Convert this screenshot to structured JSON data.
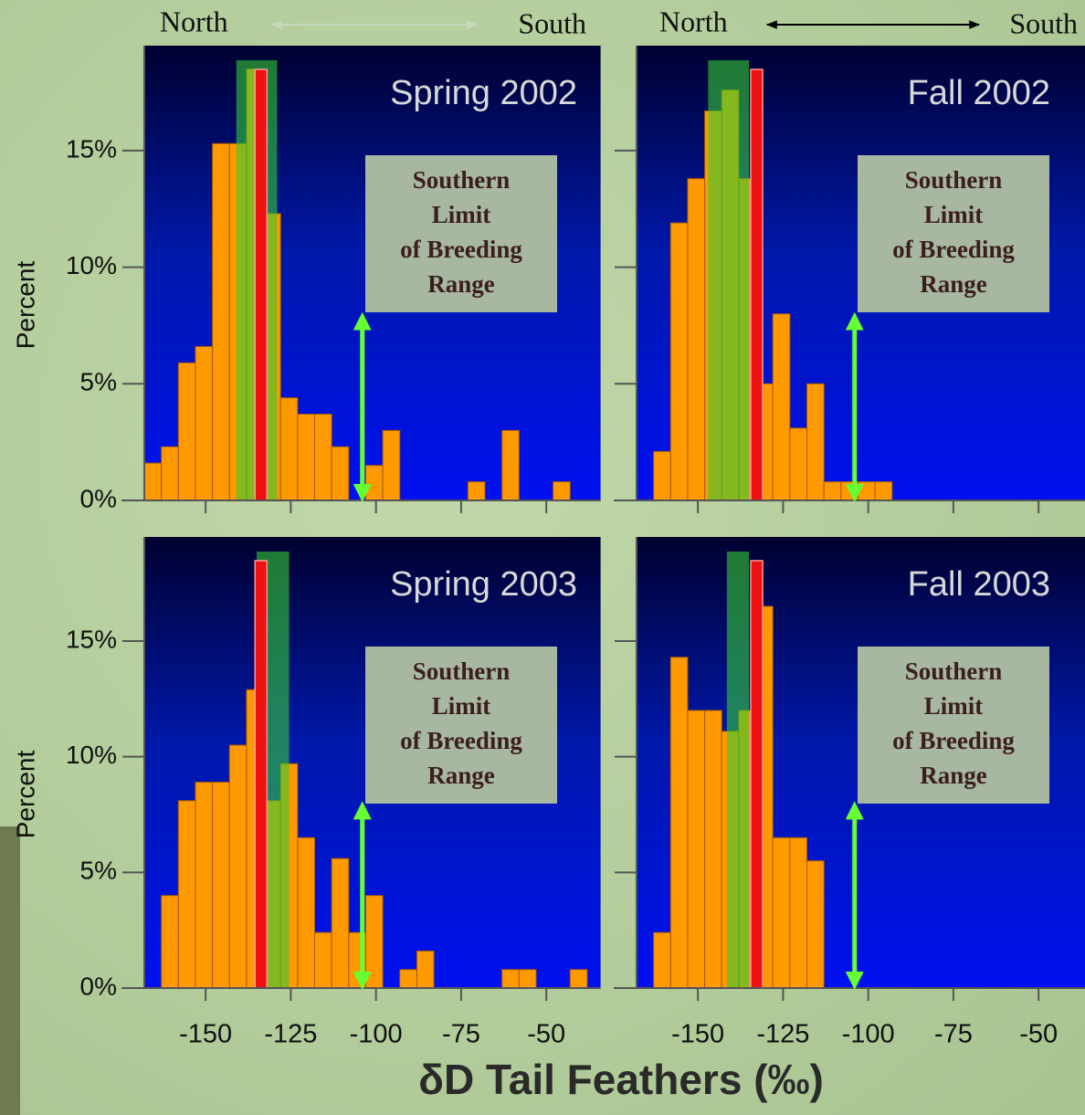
{
  "chart_data": [
    {
      "type": "histogram",
      "title": "Spring 2002",
      "direction_labels": [
        "North",
        "South"
      ],
      "direction_color": "#c8d8c0",
      "ylabel": "Percent",
      "bins": [
        -168,
        -163,
        -158,
        -153,
        -148,
        -143,
        -138,
        -133,
        -128,
        -123,
        -118,
        -113,
        -108,
        -103,
        -98,
        -93,
        -88,
        -83,
        -78,
        -73,
        -68,
        -63,
        -58,
        -53,
        -48,
        -43,
        -38,
        -33
      ],
      "values": [
        1.6,
        2.3,
        5.9,
        6.6,
        15.3,
        15.3,
        18.5,
        12.3,
        4.4,
        3.7,
        3.7,
        2.3,
        0,
        1.5,
        3.0,
        0,
        0,
        0,
        0,
        0.8,
        0,
        3.0,
        0,
        0,
        0.8,
        0,
        0
      ],
      "color": "#ff9900",
      "green_band": [
        -141,
        -129
      ],
      "red_band": [
        -135.5,
        -132
      ],
      "limit_arrow": {
        "x": -104,
        "top": 8
      },
      "annotation": [
        "Southern",
        "Limit",
        "of Breeding",
        "Range"
      ],
      "xlim": [
        -168,
        -33
      ],
      "ylim": [
        0,
        19.5
      ],
      "xticks": [
        -150,
        -125,
        -100,
        -75,
        -50
      ],
      "show_xtick_labels": false,
      "yticks": [
        {
          "value": 0,
          "label": "0%"
        },
        {
          "value": 5,
          "label": "5%"
        },
        {
          "value": 10,
          "label": "10%"
        },
        {
          "value": 15,
          "label": "15%"
        }
      ]
    },
    {
      "type": "histogram",
      "title": "Fall 2002",
      "direction_labels": [
        "North",
        "South"
      ],
      "direction_color": "#000000",
      "bins": [
        -168,
        -163,
        -158,
        -153,
        -148,
        -143,
        -138,
        -133,
        -128,
        -123,
        -118,
        -113,
        -108,
        -103,
        -98,
        -93,
        -88,
        -83,
        -78,
        -73,
        -68,
        -63,
        -58,
        -53,
        -48,
        -43,
        -38,
        -33
      ],
      "values": [
        0,
        2.1,
        11.9,
        13.8,
        16.7,
        17.6,
        13.8,
        5.0,
        8.0,
        3.1,
        5.0,
        0.8,
        0.8,
        0.8,
        0.8,
        0,
        0,
        0,
        0,
        0,
        0,
        0,
        0,
        0,
        0,
        0,
        0
      ],
      "color": "#ff9900",
      "green_band": [
        -147,
        -135
      ],
      "red_band": [
        -134.5,
        -131
      ],
      "limit_arrow": {
        "x": -104,
        "top": 8
      },
      "annotation": [
        "Southern",
        "Limit",
        "of Breeding",
        "Range"
      ],
      "xlim": [
        -168,
        -33
      ],
      "ylim": [
        0,
        19.5
      ],
      "xticks": [
        -150,
        -125,
        -100,
        -75,
        -50
      ],
      "show_xtick_labels": false,
      "yticks": [
        0,
        5,
        10,
        15
      ]
    },
    {
      "type": "histogram",
      "title": "Spring 2003",
      "ylabel": "Percent",
      "bins": [
        -168,
        -163,
        -158,
        -153,
        -148,
        -143,
        -138,
        -133,
        -128,
        -123,
        -118,
        -113,
        -108,
        -103,
        -98,
        -93,
        -88,
        -83,
        -78,
        -73,
        -68,
        -63,
        -58,
        -53,
        -48,
        -43,
        -38,
        -33
      ],
      "values": [
        0,
        4.0,
        8.1,
        8.9,
        8.9,
        10.5,
        12.9,
        8.1,
        9.7,
        6.5,
        2.4,
        5.6,
        2.4,
        4.0,
        0,
        0.8,
        1.6,
        0,
        0,
        0,
        0,
        0.8,
        0.8,
        0,
        0,
        0.8,
        0
      ],
      "color": "#ff9900",
      "green_band": [
        -135,
        -125.5
      ],
      "red_band": [
        -135.5,
        -132
      ],
      "limit_arrow": {
        "x": -104,
        "top": 8
      },
      "annotation": [
        "Southern",
        "Limit",
        "of Breeding",
        "Range"
      ],
      "xlim": [
        -168,
        -33
      ],
      "ylim": [
        0,
        19.5
      ],
      "xticks": [
        -150,
        -125,
        -100,
        -75,
        -50
      ],
      "show_xtick_labels": true,
      "yticks": [
        {
          "value": 0,
          "label": "0%"
        },
        {
          "value": 5,
          "label": "5%"
        },
        {
          "value": 10,
          "label": "10%"
        },
        {
          "value": 15,
          "label": "15%"
        }
      ]
    },
    {
      "type": "histogram",
      "title": "Fall 2003",
      "bins": [
        -168,
        -163,
        -158,
        -153,
        -148,
        -143,
        -138,
        -133,
        -128,
        -123,
        -118,
        -113,
        -108,
        -103,
        -98,
        -93,
        -88,
        -83,
        -78,
        -73,
        -68,
        -63,
        -58,
        -53,
        -48,
        -43,
        -38,
        -33
      ],
      "values": [
        0,
        2.4,
        14.3,
        12.0,
        12.0,
        11.1,
        12.0,
        16.5,
        6.5,
        6.5,
        5.5,
        0,
        0,
        0,
        0,
        0,
        0,
        0,
        0,
        0,
        0,
        0,
        0,
        0,
        0,
        0,
        0
      ],
      "color": "#ff9900",
      "green_band": [
        -141.5,
        -135
      ],
      "red_band": [
        -134.5,
        -131
      ],
      "limit_arrow": {
        "x": -104,
        "top": 8
      },
      "annotation": [
        "Southern",
        "Limit",
        "of Breeding",
        "Range"
      ],
      "xlim": [
        -168,
        -33
      ],
      "ylim": [
        0,
        19.5
      ],
      "xticks": [
        -150,
        -125,
        -100,
        -75,
        -50
      ],
      "show_xtick_labels": true,
      "yticks": [
        0,
        5,
        10,
        15
      ]
    }
  ],
  "xlabel": "δD Tail Feathers (‰)"
}
